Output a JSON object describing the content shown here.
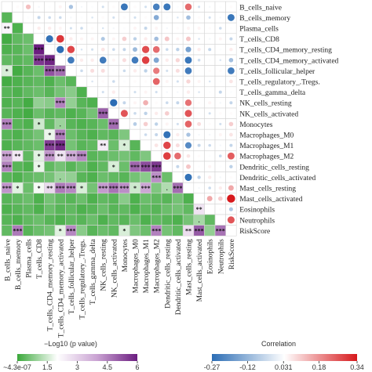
{
  "chart_data": {
    "type": "correlogram",
    "variables": [
      "B_cells_naive",
      "B_cells_memory",
      "Plasma_cells",
      "T_cells_CD8",
      "T_cells_CD4_memory_resting",
      "T_cells_CD4_memory_activated",
      "T_cells_follicular_helper",
      "T_cells_regulatory_.Tregs.",
      "T_cells_gamma_delta",
      "NK_cells_resting",
      "NK_cells_activated",
      "Monocytes",
      "Macrophages_M0",
      "Macrophages_M1",
      "Macrophages_M2",
      "Dendritic_cells_resting",
      "Dendritic_cells_activated",
      "Mast_cells_resting",
      "Mast_cells_activated",
      "Eosinophils",
      "Neutrophils",
      "RiskScore"
    ],
    "neg_log10_p": [
      [],
      [
        0.3
      ],
      [
        2.2,
        0.2
      ],
      [
        0.1,
        0.4,
        0.5
      ],
      [
        0.2,
        0.3,
        0.5,
        6.0
      ],
      [
        0.4,
        0.3,
        0.4,
        5.6,
        5.9
      ],
      [
        1.6,
        0.1,
        0.3,
        0.5,
        5.2,
        4.8
      ],
      [
        0.1,
        0.2,
        0.3,
        0.4,
        0.2,
        0.5,
        0.3
      ],
      [
        0.3,
        0.2,
        0.4,
        0.5,
        0.3,
        0.6,
        0.8,
        0.2
      ],
      [
        0.2,
        0.3,
        0.1,
        0.9,
        0.8,
        4.5,
        0.9,
        0.3,
        0.2
      ],
      [
        0.3,
        0.2,
        0.1,
        0.5,
        0.3,
        0.4,
        0.2,
        0.3,
        0.6,
        5.0
      ],
      [
        4.5,
        0.3,
        0.2,
        1.5,
        0.4,
        1.0,
        0.3,
        0.2,
        0.3,
        0.5,
        4.8
      ],
      [
        0.3,
        0.2,
        0.4,
        0.6,
        1.8,
        4.6,
        0.5,
        0.3,
        0.2,
        0.4,
        0.3,
        0.7
      ],
      [
        0.2,
        0.3,
        0.4,
        0.5,
        5.5,
        5.8,
        0.6,
        0.3,
        0.4,
        2.4,
        0.5,
        1.6,
        0.3
      ],
      [
        4.0,
        2.5,
        0.4,
        1.7,
        4.2,
        2.6,
        3.8,
        4.4,
        0.3,
        0.4,
        0.5,
        0.6,
        0.4,
        0.7
      ],
      [
        4.5,
        0.3,
        0.2,
        1.8,
        0.4,
        0.6,
        0.3,
        0.5,
        0.2,
        0.4,
        1.6,
        0.5,
        4.9,
        5.3,
        5.6
      ],
      [
        0.3,
        0.2,
        0.4,
        0.5,
        0.6,
        1.0,
        0.9,
        0.3,
        0.2,
        0.5,
        0.4,
        0.3,
        0.6,
        0.8,
        4.3,
        0.5
      ],
      [
        4.2,
        1.7,
        0.5,
        1.9,
        2.8,
        4.6,
        4.4,
        1.6,
        0.6,
        4.1,
        4.7,
        4.3,
        1.5,
        3.9,
        0.7,
        1.2,
        4.8
      ],
      [
        0.3,
        0.4,
        0.5,
        0.2,
        0.6,
        0.4,
        0.3,
        0.5,
        0.2,
        0.4,
        0.3,
        0.8,
        0.2,
        0.5,
        0.4,
        0.3,
        0.6,
        0.2
      ],
      [
        0.2,
        0.3,
        0.4,
        0.2,
        0.5,
        0.3,
        0.4,
        0.2,
        0.3,
        0.5,
        0.3,
        0.4,
        0.2,
        0.4,
        0.3,
        0.5,
        0.6,
        0.4,
        2.6
      ],
      [
        0.3,
        0.2,
        0.4,
        0.5,
        0.3,
        0.2,
        0.4,
        0.3,
        0.5,
        0.2,
        0.4,
        0.3,
        0.5,
        0.2,
        0.4,
        0.3,
        0.2,
        0.6,
        1.1,
        0.4
      ],
      [
        0.4,
        4.6,
        0.3,
        0.5,
        0.6,
        1.7,
        4.4,
        0.8,
        0.3,
        0.5,
        0.4,
        1.6,
        0.7,
        0.5,
        4.5,
        0.6,
        0.4,
        2.7,
        5.1,
        0.9,
        4.7
      ]
    ],
    "significance": [
      [],
      [
        null
      ],
      [
        "**",
        null
      ],
      [
        null,
        null,
        null
      ],
      [
        null,
        null,
        null,
        "***"
      ],
      [
        null,
        null,
        null,
        "***",
        "***"
      ],
      [
        "*",
        null,
        null,
        null,
        "***",
        "***"
      ],
      [
        null,
        null,
        null,
        null,
        null,
        null,
        null
      ],
      [
        null,
        null,
        null,
        null,
        null,
        null,
        null,
        null
      ],
      [
        null,
        null,
        null,
        null,
        null,
        "***",
        null,
        null,
        null
      ],
      [
        null,
        null,
        null,
        null,
        null,
        null,
        null,
        null,
        null,
        "***"
      ],
      [
        "***",
        null,
        null,
        "*",
        null,
        ".",
        null,
        null,
        null,
        null,
        "***"
      ],
      [
        null,
        null,
        null,
        null,
        "*",
        "***",
        null,
        null,
        null,
        null,
        null,
        null
      ],
      [
        null,
        null,
        null,
        null,
        "***",
        "***",
        null,
        null,
        null,
        "**",
        null,
        "*",
        null
      ],
      [
        "***",
        "**",
        null,
        "*",
        "***",
        "**",
        "***",
        "***",
        null,
        null,
        null,
        null,
        null,
        null
      ],
      [
        "***",
        null,
        null,
        "*",
        null,
        null,
        null,
        null,
        null,
        null,
        "*",
        null,
        "***",
        "***",
        "***"
      ],
      [
        null,
        null,
        null,
        null,
        null,
        ".",
        null,
        null,
        null,
        null,
        null,
        null,
        null,
        null,
        "***",
        null
      ],
      [
        "***",
        "*",
        null,
        "*",
        "**",
        "***",
        "***",
        "*",
        null,
        "***",
        "***",
        "***",
        "*",
        "***",
        null,
        ".",
        "***"
      ],
      [
        null,
        null,
        null,
        null,
        null,
        null,
        null,
        null,
        null,
        null,
        null,
        null,
        null,
        null,
        null,
        null,
        null,
        null
      ],
      [
        null,
        null,
        null,
        null,
        null,
        null,
        null,
        null,
        null,
        null,
        null,
        null,
        null,
        null,
        null,
        null,
        null,
        null,
        "**"
      ],
      [
        null,
        null,
        null,
        null,
        null,
        null,
        null,
        null,
        null,
        null,
        null,
        null,
        null,
        null,
        null,
        null,
        null,
        null,
        ".",
        null
      ],
      [
        null,
        "***",
        null,
        null,
        null,
        "*",
        "***",
        null,
        null,
        null,
        null,
        "*",
        null,
        null,
        "***",
        null,
        null,
        "**",
        "***",
        null,
        "***"
      ]
    ],
    "correlation": [
      [],
      [
        0.04
      ],
      [
        0.12,
        0.03
      ],
      [
        0.02,
        -0.05,
        0.06
      ],
      [
        0.03,
        -0.04,
        0.06,
        -0.26
      ],
      [
        0.05,
        -0.04,
        0.05,
        0.3,
        -0.27
      ],
      [
        -0.09,
        0.02,
        -0.03,
        0.06,
        0.28,
        -0.24
      ],
      [
        0.01,
        0.03,
        -0.04,
        0.05,
        -0.02,
        0.06,
        -0.04
      ],
      [
        0.03,
        -0.02,
        0.04,
        0.05,
        -0.03,
        0.06,
        0.08,
        -0.02
      ],
      [
        -0.03,
        0.04,
        -0.02,
        -0.08,
        0.07,
        -0.24,
        0.08,
        0.04,
        -0.03
      ],
      [
        0.04,
        -0.03,
        0.02,
        0.05,
        -0.04,
        0.05,
        0.03,
        -0.04,
        0.06,
        -0.27
      ],
      [
        -0.25,
        0.04,
        0.03,
        0.1,
        -0.05,
        0.08,
        -0.04,
        0.03,
        0.04,
        -0.05,
        0.26
      ],
      [
        0.04,
        -0.03,
        0.05,
        -0.06,
        -0.11,
        -0.24,
        0.06,
        0.04,
        -0.03,
        0.05,
        -0.04,
        -0.07
      ],
      [
        -0.03,
        0.04,
        -0.05,
        0.06,
        0.27,
        0.29,
        -0.06,
        0.04,
        0.05,
        0.14,
        -0.06,
        0.1,
        -0.04
      ],
      [
        -0.23,
        -0.14,
        0.05,
        -0.1,
        0.23,
        -0.15,
        0.21,
        0.24,
        -0.03,
        0.04,
        0.06,
        -0.06,
        -0.05,
        0.07
      ],
      [
        -0.25,
        0.03,
        0.02,
        0.11,
        -0.04,
        0.06,
        -0.03,
        0.05,
        0.02,
        -0.04,
        0.1,
        0.05,
        -0.26,
        0.28,
        0.29
      ],
      [
        0.03,
        -0.02,
        0.04,
        0.05,
        -0.06,
        0.09,
        0.08,
        -0.03,
        0.02,
        -0.05,
        0.04,
        -0.03,
        0.06,
        0.08,
        0.23,
        -0.05
      ],
      [
        0.23,
        -0.1,
        0.05,
        0.11,
        -0.16,
        -0.25,
        -0.24,
        0.09,
        0.06,
        0.22,
        0.26,
        0.24,
        -0.09,
        -0.21,
        0.07,
        0.11,
        -0.26
      ],
      [
        -0.03,
        0.04,
        0.05,
        -0.02,
        0.06,
        -0.04,
        0.03,
        0.05,
        -0.02,
        0.04,
        0.03,
        0.08,
        0.02,
        -0.05,
        0.04,
        0.03,
        -0.06,
        0.02
      ],
      [
        0.02,
        -0.03,
        0.04,
        0.02,
        -0.05,
        0.03,
        0.04,
        -0.02,
        0.03,
        0.05,
        -0.03,
        0.04,
        0.02,
        -0.04,
        0.03,
        0.05,
        0.06,
        -0.04,
        0.15
      ],
      [
        0.03,
        0.02,
        -0.04,
        0.05,
        0.03,
        -0.02,
        0.04,
        0.03,
        -0.05,
        0.02,
        0.04,
        -0.03,
        0.05,
        0.02,
        -0.04,
        0.03,
        0.02,
        0.06,
        0.1,
        0.04
      ],
      [
        0.04,
        -0.25,
        0.03,
        -0.05,
        0.06,
        -0.1,
        -0.24,
        0.07,
        0.03,
        -0.05,
        0.04,
        0.1,
        0.07,
        -0.05,
        0.25,
        -0.06,
        0.04,
        0.15,
        0.34,
        -0.08,
        0.26
      ]
    ],
    "p_legend": {
      "title": "−Log10 (p value)",
      "lim": [
        4.3e-07,
        6
      ],
      "ticks": [
        {
          "value": 4.3e-07,
          "label": "~4.3e-07"
        },
        1.5,
        3,
        4.5,
        6
      ],
      "colors": [
        "#3aa83a",
        "#ffffff",
        "#c9a2d2",
        "#6b1d80"
      ]
    },
    "corr_legend": {
      "title": "Correlation",
      "lim": [
        -0.27,
        0.34
      ],
      "ticks": [
        -0.27,
        -0.12,
        0.031,
        0.18,
        0.34
      ],
      "colors": [
        "#2c6db5",
        "#ffffff",
        "#d7191c"
      ]
    }
  }
}
